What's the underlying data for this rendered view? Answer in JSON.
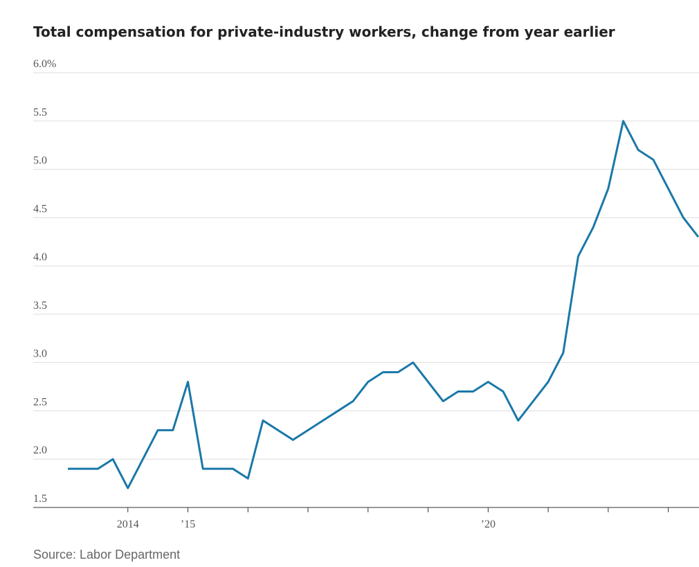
{
  "chart_data": {
    "type": "line",
    "title": "Total compensation for private-industry workers, change from year earlier",
    "source": "Source: Labor Department",
    "categories": [
      null,
      null,
      null,
      null,
      "2014",
      null,
      null,
      null,
      "’15",
      null,
      null,
      null,
      null,
      null,
      null,
      null,
      null,
      null,
      null,
      null,
      null,
      null,
      null,
      null,
      null,
      null,
      null,
      null,
      "’20",
      null,
      null,
      null,
      null,
      null,
      null,
      null,
      null,
      null,
      null,
      null,
      null,
      null,
      null
    ],
    "series": [
      {
        "name": "Total compensation",
        "color": "#1a78a8",
        "values": [
          1.9,
          1.9,
          1.9,
          2.0,
          1.7,
          2.0,
          2.3,
          2.3,
          2.8,
          1.9,
          1.9,
          1.9,
          1.8,
          2.4,
          2.3,
          2.2,
          2.3,
          2.4,
          2.5,
          2.6,
          2.8,
          2.9,
          2.9,
          3.0,
          2.8,
          2.6,
          2.7,
          2.7,
          2.8,
          2.7,
          2.4,
          2.6,
          2.8,
          3.1,
          4.1,
          4.4,
          4.8,
          5.5,
          5.2,
          5.1,
          4.8,
          4.5,
          4.3
        ]
      }
    ],
    "ylim": [
      1.5,
      6.0
    ],
    "yticks": [
      1.5,
      {
        "value": 2.0,
        "label": "2.0"
      },
      2.5,
      {
        "value": 3.0,
        "label": "3.0"
      },
      3.5,
      {
        "value": 4.0,
        "label": "4.0"
      },
      4.5,
      {
        "value": 5.0,
        "label": "5.0"
      },
      5.5,
      {
        "value": 6.0,
        "label": "6.0%"
      }
    ],
    "grid": true
  }
}
